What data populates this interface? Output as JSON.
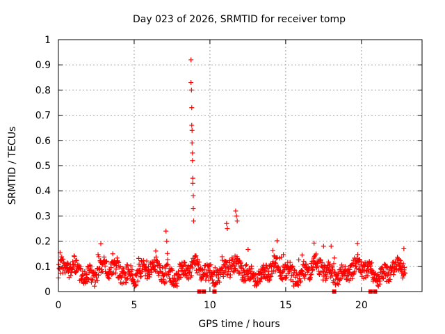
{
  "chart_data": {
    "type": "scatter",
    "title": "Day 023 of 2026, SRMTID for receiver tomp",
    "xlabel": "GPS time / hours",
    "ylabel": "SRMTID / TECUs",
    "xlim": [
      0,
      24
    ],
    "ylim": [
      0,
      1
    ],
    "xticks": [
      0,
      5,
      10,
      15,
      20
    ],
    "xtick_labels": [
      "0",
      "5",
      "10",
      "15",
      "20"
    ],
    "yticks": [
      0,
      0.1,
      0.2,
      0.3,
      0.4,
      0.5,
      0.6,
      0.7,
      0.8,
      0.9,
      1
    ],
    "ytick_labels": [
      "0",
      "0.1",
      "0.2",
      "0.3",
      "0.4",
      "0.5",
      "0.6",
      "0.7",
      "0.8",
      "0.9",
      "1"
    ],
    "grid": true,
    "marker": "+",
    "color": "#ff0000",
    "series": [
      {
        "name": "SRMTID",
        "x_range": [
          0,
          22.9
        ],
        "baseline": "mostly 0.03-0.13 TECU with scatter up to ~0.19",
        "notable_points": [
          {
            "x": 8.75,
            "y": 0.92
          },
          {
            "x": 8.75,
            "y": 0.83
          },
          {
            "x": 8.78,
            "y": 0.8
          },
          {
            "x": 8.8,
            "y": 0.73
          },
          {
            "x": 8.8,
            "y": 0.66
          },
          {
            "x": 8.82,
            "y": 0.64
          },
          {
            "x": 8.82,
            "y": 0.59
          },
          {
            "x": 8.85,
            "y": 0.55
          },
          {
            "x": 8.85,
            "y": 0.52
          },
          {
            "x": 8.87,
            "y": 0.45
          },
          {
            "x": 8.87,
            "y": 0.43
          },
          {
            "x": 8.9,
            "y": 0.38
          },
          {
            "x": 8.9,
            "y": 0.33
          },
          {
            "x": 8.92,
            "y": 0.28
          },
          {
            "x": 11.7,
            "y": 0.32
          },
          {
            "x": 11.75,
            "y": 0.3
          },
          {
            "x": 11.8,
            "y": 0.28
          },
          {
            "x": 11.1,
            "y": 0.27
          },
          {
            "x": 11.15,
            "y": 0.25
          },
          {
            "x": 7.1,
            "y": 0.24
          },
          {
            "x": 7.15,
            "y": 0.2
          },
          {
            "x": 2.8,
            "y": 0.19
          },
          {
            "x": 17.5,
            "y": 0.18
          },
          {
            "x": 18.0,
            "y": 0.18
          },
          {
            "x": 22.8,
            "y": 0.17
          }
        ],
        "zero_points": [
          9.3,
          9.6,
          10.3,
          18.2,
          20.6,
          20.9
        ]
      }
    ]
  }
}
